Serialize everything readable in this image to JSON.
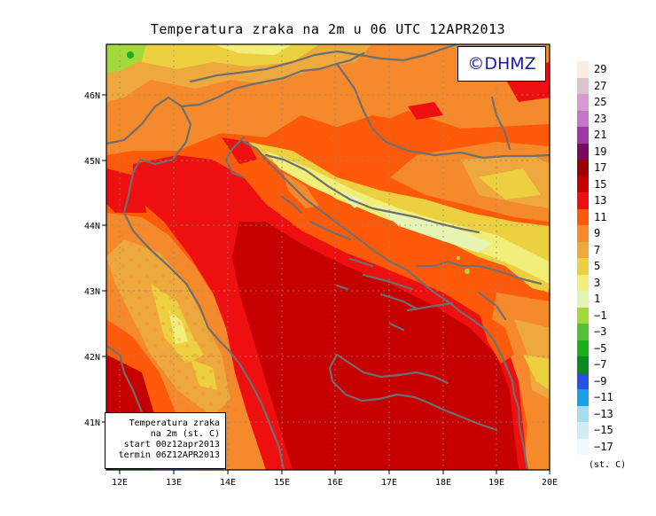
{
  "title": "Temperatura zraka na 2m u 06 UTC 12APR2013",
  "logo_text": "©DHMZ",
  "info": {
    "line1": "Temperatura zraka",
    "line2": "na 2m (st. C)",
    "line3": "start 00z12apr2013",
    "line4": "termin 06Z12APR2013"
  },
  "axes": {
    "x_ticks": [
      "12E",
      "13E",
      "14E",
      "15E",
      "16E",
      "17E",
      "18E",
      "19E",
      "20E"
    ],
    "y_ticks": [
      "41N",
      "42N",
      "43N",
      "44N",
      "45N",
      "46N"
    ]
  },
  "legend": {
    "unit": "(st. C)",
    "items": [
      {
        "label": "29",
        "color": "#fbeee0"
      },
      {
        "label": "27",
        "color": "#d9c3cc"
      },
      {
        "label": "25",
        "color": "#d99ad2"
      },
      {
        "label": "23",
        "color": "#c476c8"
      },
      {
        "label": "21",
        "color": "#a039a6"
      },
      {
        "label": "19",
        "color": "#7a0a5c"
      },
      {
        "label": "17",
        "color": "#9c0000"
      },
      {
        "label": "15",
        "color": "#c60000"
      },
      {
        "label": "13",
        "color": "#ee1010"
      },
      {
        "label": "11",
        "color": "#ff5a0a"
      },
      {
        "label": "9",
        "color": "#f48a2c"
      },
      {
        "label": "7",
        "color": "#eda83e"
      },
      {
        "label": "5",
        "color": "#ecd040"
      },
      {
        "label": "3",
        "color": "#f1ee7a"
      },
      {
        "label": "1",
        "color": "#e6f5b4"
      },
      {
        "label": "−1",
        "color": "#a3d93a"
      },
      {
        "label": "−3",
        "color": "#52c234"
      },
      {
        "label": "−5",
        "color": "#18b018"
      },
      {
        "label": "−7",
        "color": "#0a8a20"
      },
      {
        "label": "−9",
        "color": "#2a50ea"
      },
      {
        "label": "−11",
        "color": "#16a0e6"
      },
      {
        "label": "−13",
        "color": "#a6dcec"
      },
      {
        "label": "−15",
        "color": "#d2ecf4"
      },
      {
        "label": "−17",
        "color": "#f0fbfb"
      }
    ]
  }
}
